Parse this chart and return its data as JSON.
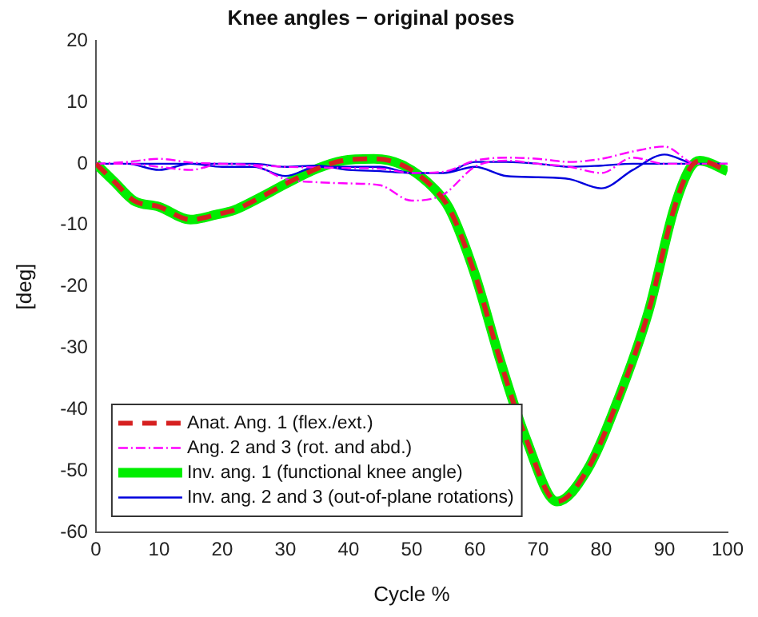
{
  "chart_data": {
    "type": "line",
    "title": "Knee angles − original poses",
    "xlabel": "Cycle %",
    "ylabel": "[deg]",
    "xlim": [
      0,
      100
    ],
    "xticks": [
      0,
      10,
      20,
      30,
      40,
      50,
      60,
      70,
      80,
      90,
      100
    ],
    "ylim": [
      -60,
      20
    ],
    "yticks": [
      -60,
      -50,
      -40,
      -30,
      -20,
      -10,
      0,
      10,
      20
    ],
    "grid": false,
    "legend": "bottom left",
    "marker": "none",
    "series": [
      {
        "name": "Anat. Ang. 1 (flex./ext.)",
        "color": "#d62020",
        "line_style": "dashed",
        "x": [
          0,
          3,
          6,
          10,
          15,
          19,
          22,
          26,
          30,
          35,
          39,
          44,
          48.5,
          53.5,
          56,
          60,
          64,
          68,
          73,
          77.7,
          82.5,
          87.5,
          91.5,
          94,
          95.6,
          100
        ],
        "values": [
          0,
          -3,
          -6,
          -7,
          -9.1,
          -8.3,
          -7.5,
          -5.5,
          -3.3,
          -0.8,
          0.5,
          0.8,
          -0.2,
          -4,
          -7.4,
          -18,
          -32,
          -44.5,
          -55,
          -50,
          -38.8,
          -24,
          -7.4,
          -0.8,
          0.5,
          -1.2
        ]
      },
      {
        "name": "Ang. 2 and 3 (rot. and abd.)",
        "color": "#ff00ff",
        "line_style": "dotted",
        "x": [
          0,
          5,
          10,
          15,
          20,
          25,
          30,
          35,
          40,
          45,
          50,
          55,
          60,
          65,
          70,
          75,
          80,
          85,
          90,
          95,
          100,
          null,
          0,
          5,
          10,
          15,
          20,
          25,
          30,
          35,
          40,
          45,
          50,
          55,
          60,
          65,
          70,
          75,
          80,
          85,
          90,
          95,
          100
        ],
        "values": [
          0,
          0.3,
          0.8,
          0.2,
          0,
          -0.2,
          -0.5,
          -0.6,
          -0.7,
          -0.8,
          -1.5,
          -1.3,
          0.5,
          1,
          0.8,
          0.3,
          0.8,
          2,
          2.8,
          0,
          0,
          null,
          0,
          0,
          -0.5,
          -1,
          0,
          -0.3,
          -2.5,
          -3,
          -3.2,
          -3.5,
          -6,
          -5,
          -0.5,
          0.5,
          0,
          -0.5,
          -1.5,
          1,
          0,
          0,
          0
        ]
      },
      {
        "name": "Inv. ang. 1 (functional knee angle)",
        "color": "#00ee00",
        "line_style": "solid",
        "x": [
          0,
          3,
          6,
          10,
          15,
          19,
          22,
          26,
          30,
          35,
          39,
          44,
          48.5,
          53.5,
          56,
          60,
          64,
          68,
          73,
          77.7,
          82.5,
          87.5,
          91.5,
          94,
          95.6,
          100
        ],
        "values": [
          0,
          -3,
          -6,
          -7,
          -9.1,
          -8.3,
          -7.5,
          -5.5,
          -3.3,
          -0.8,
          0.5,
          0.8,
          -0.2,
          -4,
          -7.4,
          -18,
          -32,
          -44.5,
          -55,
          -50,
          -38.8,
          -24,
          -7.4,
          -0.8,
          0.5,
          -1.2
        ]
      },
      {
        "name": "Inv. ang. 2 and 3 (out-of-plane rotations)",
        "color": "#0000dd",
        "line_style": "solid",
        "x": [
          0,
          5,
          10,
          15,
          20,
          25,
          30,
          35,
          40,
          45,
          50,
          55,
          60,
          65,
          70,
          75,
          80,
          85,
          90,
          95,
          100,
          null,
          0,
          5,
          10,
          15,
          20,
          25,
          30,
          35,
          40,
          45,
          50,
          55,
          60,
          65,
          70,
          75,
          80,
          85,
          90,
          95,
          100
        ],
        "values": [
          0,
          0,
          -1,
          0,
          -0.5,
          -0.5,
          -2,
          -0.5,
          -0.5,
          -0.5,
          -1.5,
          -1.5,
          -0.5,
          -2,
          -2.2,
          -2.5,
          -4,
          -1,
          1.5,
          0,
          0,
          null,
          0,
          0,
          0,
          0,
          0,
          0,
          -0.5,
          -0.3,
          -1,
          -1.2,
          -1.5,
          -1.5,
          0.3,
          0.3,
          0,
          -0.5,
          -0.3,
          0,
          0,
          0,
          0
        ]
      }
    ]
  }
}
